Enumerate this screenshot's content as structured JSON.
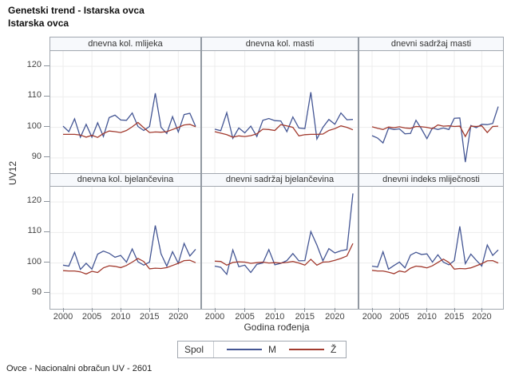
{
  "titles": [
    "Genetski trend - Istarska ovca",
    "Istarska ovca"
  ],
  "footnote": "Ovce - Nacionalni obračun UV - 2601",
  "y_axis": {
    "label": "UV12",
    "ticks": [
      90,
      100,
      110,
      120
    ]
  },
  "x_axis": {
    "label": "Godina rođenja",
    "ticks": [
      2000,
      2005,
      2010,
      2015,
      2020
    ]
  },
  "legend": {
    "title": "Spol",
    "entries": [
      {
        "label": "M",
        "color": "#445694"
      },
      {
        "label": "Ž",
        "color": "#A23A2E"
      }
    ]
  },
  "style": {
    "grid_color": "#ededed",
    "frame_color": "#a2a8b0",
    "header_fill": "#f7f9fc",
    "male_color": "#445694",
    "female_color": "#A23A2E"
  },
  "chart_data": [
    {
      "type": "line",
      "title": "dnevna kol. mlijeka",
      "xlabel": "Godina rođenja",
      "ylabel": "UV12",
      "ylim": [
        85,
        125
      ],
      "yticks": [
        90,
        100,
        110,
        120
      ],
      "xticks": [
        2000,
        2005,
        2010,
        2015,
        2020
      ],
      "x": [
        2000,
        2001,
        2002,
        2003,
        2004,
        2005,
        2006,
        2007,
        2008,
        2009,
        2010,
        2011,
        2012,
        2013,
        2014,
        2015,
        2016,
        2017,
        2018,
        2019,
        2020,
        2021,
        2022,
        2023
      ],
      "series": [
        {
          "name": "M",
          "color": "#445694",
          "values": [
            100.4,
            98.6,
            102.8,
            96.8,
            101.0,
            96.8,
            101.5,
            97.0,
            103.2,
            104.0,
            102.4,
            102.3,
            104.7,
            100.3,
            99.0,
            100.3,
            111.2,
            100.0,
            98.0,
            103.5,
            98.5,
            104.2,
            104.6,
            100.3
          ]
        },
        {
          "name": "Ž",
          "color": "#A23A2E",
          "values": [
            97.7,
            97.7,
            97.7,
            97.5,
            96.8,
            97.4,
            96.7,
            98.0,
            98.8,
            98.6,
            98.3,
            99.0,
            100.2,
            101.6,
            99.9,
            98.3,
            98.5,
            98.4,
            98.6,
            99.3,
            100.0,
            100.8,
            101.0,
            100.2
          ]
        }
      ]
    },
    {
      "type": "line",
      "title": "dnevna kol. masti",
      "xlabel": "Godina rođenja",
      "ylabel": "UV12",
      "ylim": [
        85,
        125
      ],
      "yticks": [
        90,
        100,
        110,
        120
      ],
      "xticks": [
        2000,
        2005,
        2010,
        2015,
        2020
      ],
      "x": [
        2000,
        2001,
        2002,
        2003,
        2004,
        2005,
        2006,
        2007,
        2008,
        2009,
        2010,
        2011,
        2012,
        2013,
        2014,
        2015,
        2016,
        2017,
        2018,
        2019,
        2020,
        2021,
        2022,
        2023
      ],
      "series": [
        {
          "name": "M",
          "color": "#445694",
          "values": [
            99.4,
            98.9,
            104.8,
            96.4,
            99.8,
            98.2,
            100.4,
            97.0,
            102.3,
            102.9,
            102.2,
            102.1,
            98.6,
            103.4,
            99.8,
            99.6,
            111.5,
            96.2,
            100.0,
            102.6,
            101.0,
            104.7,
            102.5,
            102.6
          ]
        },
        {
          "name": "Ž",
          "color": "#A23A2E",
          "values": [
            98.6,
            98.1,
            97.6,
            96.8,
            97.2,
            97.0,
            97.3,
            97.9,
            99.4,
            99.3,
            99.0,
            100.9,
            100.5,
            100.0,
            97.2,
            97.6,
            97.7,
            97.7,
            97.8,
            99.0,
            99.6,
            100.5,
            100.0,
            99.2
          ]
        }
      ]
    },
    {
      "type": "line",
      "title": "dnevni sadržaj masti",
      "xlabel": "Godina rođenja",
      "ylabel": "UV12",
      "ylim": [
        85,
        125
      ],
      "yticks": [
        90,
        100,
        110,
        120
      ],
      "xticks": [
        2000,
        2005,
        2010,
        2015,
        2020
      ],
      "x": [
        2000,
        2001,
        2002,
        2003,
        2004,
        2005,
        2006,
        2007,
        2008,
        2009,
        2010,
        2011,
        2012,
        2013,
        2014,
        2015,
        2016,
        2017,
        2018,
        2019,
        2020,
        2021,
        2022,
        2023
      ],
      "series": [
        {
          "name": "M",
          "color": "#445694",
          "values": [
            97.3,
            96.5,
            94.9,
            99.7,
            99.3,
            99.5,
            97.9,
            98.0,
            102.3,
            99.5,
            96.3,
            99.8,
            99.3,
            99.8,
            99.3,
            103.0,
            103.1,
            88.6,
            100.6,
            99.9,
            101.0,
            100.9,
            101.3,
            106.8
          ]
        },
        {
          "name": "Ž",
          "color": "#A23A2E",
          "values": [
            100.2,
            99.7,
            99.3,
            100.1,
            99.9,
            100.2,
            99.8,
            99.7,
            100.3,
            100.2,
            100.0,
            99.6,
            100.8,
            100.4,
            100.5,
            100.3,
            100.4,
            97.0,
            100.4,
            100.3,
            100.5,
            98.3,
            100.3,
            100.4
          ]
        }
      ]
    },
    {
      "type": "line",
      "title": "dnevna kol. bjelančevina",
      "xlabel": "Godina rođenja",
      "ylabel": "UV12",
      "ylim": [
        85,
        125
      ],
      "yticks": [
        90,
        100,
        110,
        120
      ],
      "xticks": [
        2000,
        2005,
        2010,
        2015,
        2020
      ],
      "x": [
        2000,
        2001,
        2002,
        2003,
        2004,
        2005,
        2006,
        2007,
        2008,
        2009,
        2010,
        2011,
        2012,
        2013,
        2014,
        2015,
        2016,
        2017,
        2018,
        2019,
        2020,
        2021,
        2022,
        2023
      ],
      "series": [
        {
          "name": "M",
          "color": "#445694",
          "values": [
            99.3,
            99.0,
            103.5,
            97.9,
            99.9,
            98.0,
            102.9,
            103.9,
            103.2,
            101.9,
            102.5,
            100.3,
            104.6,
            100.4,
            99.3,
            100.3,
            112.3,
            103.0,
            99.0,
            103.7,
            99.9,
            106.4,
            102.3,
            104.5
          ]
        },
        {
          "name": "Ž",
          "color": "#A23A2E",
          "values": [
            97.5,
            97.4,
            97.4,
            97.1,
            96.4,
            97.3,
            96.9,
            98.4,
            99.1,
            98.9,
            98.5,
            99.2,
            100.3,
            101.5,
            100.5,
            98.1,
            98.3,
            98.2,
            98.5,
            99.2,
            99.9,
            100.8,
            100.9,
            100.1
          ]
        }
      ]
    },
    {
      "type": "line",
      "title": "dnevni sadržaj bjelančevina",
      "xlabel": "Godina rođenja",
      "ylabel": "UV12",
      "ylim": [
        85,
        125
      ],
      "yticks": [
        90,
        100,
        110,
        120
      ],
      "xticks": [
        2000,
        2005,
        2010,
        2015,
        2020
      ],
      "x": [
        2000,
        2001,
        2002,
        2003,
        2004,
        2005,
        2006,
        2007,
        2008,
        2009,
        2010,
        2011,
        2012,
        2013,
        2014,
        2015,
        2016,
        2017,
        2018,
        2019,
        2020,
        2021,
        2022,
        2023
      ],
      "series": [
        {
          "name": "M",
          "color": "#445694",
          "values": [
            99.0,
            98.6,
            96.3,
            104.3,
            98.8,
            99.3,
            96.9,
            99.6,
            100.0,
            104.4,
            99.4,
            99.9,
            100.8,
            103.1,
            100.7,
            100.8,
            110.3,
            105.9,
            100.7,
            104.7,
            103.3,
            104.0,
            104.4,
            122.8
          ]
        },
        {
          "name": "Ž",
          "color": "#A23A2E",
          "values": [
            100.6,
            100.5,
            99.3,
            100.2,
            100.4,
            100.3,
            99.9,
            100.1,
            100.3,
            100.0,
            100.1,
            100.0,
            100.2,
            100.5,
            100.0,
            99.3,
            101.2,
            99.3,
            100.3,
            100.4,
            100.9,
            101.5,
            102.3,
            106.4
          ]
        }
      ]
    },
    {
      "type": "line",
      "title": "dnevni indeks mliječnosti",
      "xlabel": "Godina rođenja",
      "ylabel": "UV12",
      "ylim": [
        85,
        125
      ],
      "yticks": [
        90,
        100,
        110,
        120
      ],
      "xticks": [
        2000,
        2005,
        2010,
        2015,
        2020
      ],
      "x": [
        2000,
        2001,
        2002,
        2003,
        2004,
        2005,
        2006,
        2007,
        2008,
        2009,
        2010,
        2011,
        2012,
        2013,
        2014,
        2015,
        2016,
        2017,
        2018,
        2019,
        2020,
        2021,
        2022,
        2023
      ],
      "series": [
        {
          "name": "M",
          "color": "#445694",
          "values": [
            99.0,
            98.7,
            103.7,
            98.0,
            99.2,
            100.3,
            98.4,
            102.6,
            103.5,
            102.8,
            103.0,
            100.3,
            102.7,
            100.3,
            99.4,
            100.8,
            112.0,
            99.8,
            102.9,
            100.9,
            99.0,
            105.9,
            102.5,
            104.3
          ]
        },
        {
          "name": "Ž",
          "color": "#A23A2E",
          "values": [
            97.6,
            97.4,
            97.4,
            97.0,
            96.5,
            97.4,
            97.0,
            98.3,
            99.0,
            98.8,
            98.4,
            99.1,
            100.2,
            101.3,
            100.2,
            98.0,
            98.2,
            98.1,
            98.4,
            99.1,
            99.8,
            100.7,
            100.8,
            100.0
          ]
        }
      ]
    }
  ]
}
